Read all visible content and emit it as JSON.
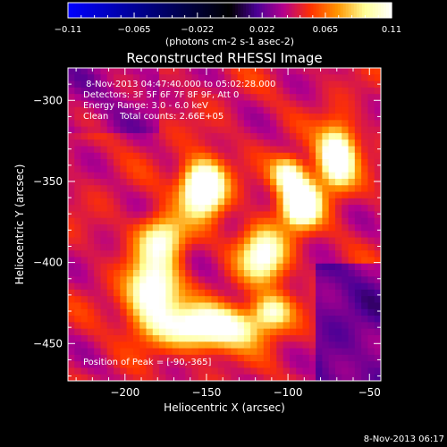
{
  "chart_data": {
    "type": "heatmap",
    "title": "Reconstructed RHESSI Image",
    "xlabel": "Heliocentric X (arcsec)",
    "ylabel": "Heliocentric Y (arcsec)",
    "xlim": [
      -235,
      -43
    ],
    "ylim": [
      -473,
      -280
    ],
    "x_ticks": [
      -200,
      -150,
      -100,
      -50
    ],
    "y_ticks": [
      -300,
      -350,
      -400,
      -450
    ],
    "colorbar": {
      "range": [
        -0.11,
        0.11
      ],
      "ticks": [
        "-0.11",
        "-0.065",
        "-0.022",
        "0.022",
        "0.065",
        "0.11"
      ],
      "unit_label": "(photons cm-2 s-1 asec-2)",
      "colormap": [
        "#000000",
        "#4b0096",
        "#b4008c",
        "#ff3200",
        "#ff9600",
        "#ffff96",
        "#ffffff"
      ],
      "negative_colors": [
        "#0000ff",
        "#000000"
      ]
    },
    "annotations": [
      " 8-Nov-2013 04:47:40.000 to 05:02:28.000",
      "Detectors: 3F 5F 6F 7F 8F 9F, Att 0",
      "Energy Range: 3.0 - 6.0 keV",
      "Clean    Total counts: 2.66E+05"
    ],
    "peak_label": "Position of Peak = [-90,-365]",
    "peak": [
      -90,
      -365
    ],
    "sources": [
      {
        "x": -152,
        "y": -354,
        "sigma_x": 9,
        "sigma_y": 11,
        "amp": 0.11
      },
      {
        "x": -92,
        "y": -363,
        "sigma_x": 8,
        "sigma_y": 10,
        "amp": 0.105
      },
      {
        "x": -70,
        "y": -335,
        "sigma_x": 8,
        "sigma_y": 13,
        "amp": 0.09
      },
      {
        "x": -148,
        "y": -440,
        "sigma_x": 22,
        "sigma_y": 9,
        "amp": 0.085
      },
      {
        "x": -183,
        "y": -418,
        "sigma_x": 11,
        "sigma_y": 14,
        "amp": 0.08
      },
      {
        "x": -115,
        "y": -395,
        "sigma_x": 10,
        "sigma_y": 12,
        "amp": 0.07
      },
      {
        "x": -100,
        "y": -345,
        "sigma_x": 7,
        "sigma_y": 7,
        "amp": 0.06
      },
      {
        "x": -177,
        "y": -385,
        "sigma_x": 10,
        "sigma_y": 10,
        "amp": 0.06
      },
      {
        "x": -110,
        "y": -430,
        "sigma_x": 8,
        "sigma_y": 7,
        "amp": 0.05
      }
    ],
    "background_level": 0.045,
    "timestamp": "8-Nov-2013 06:17"
  }
}
